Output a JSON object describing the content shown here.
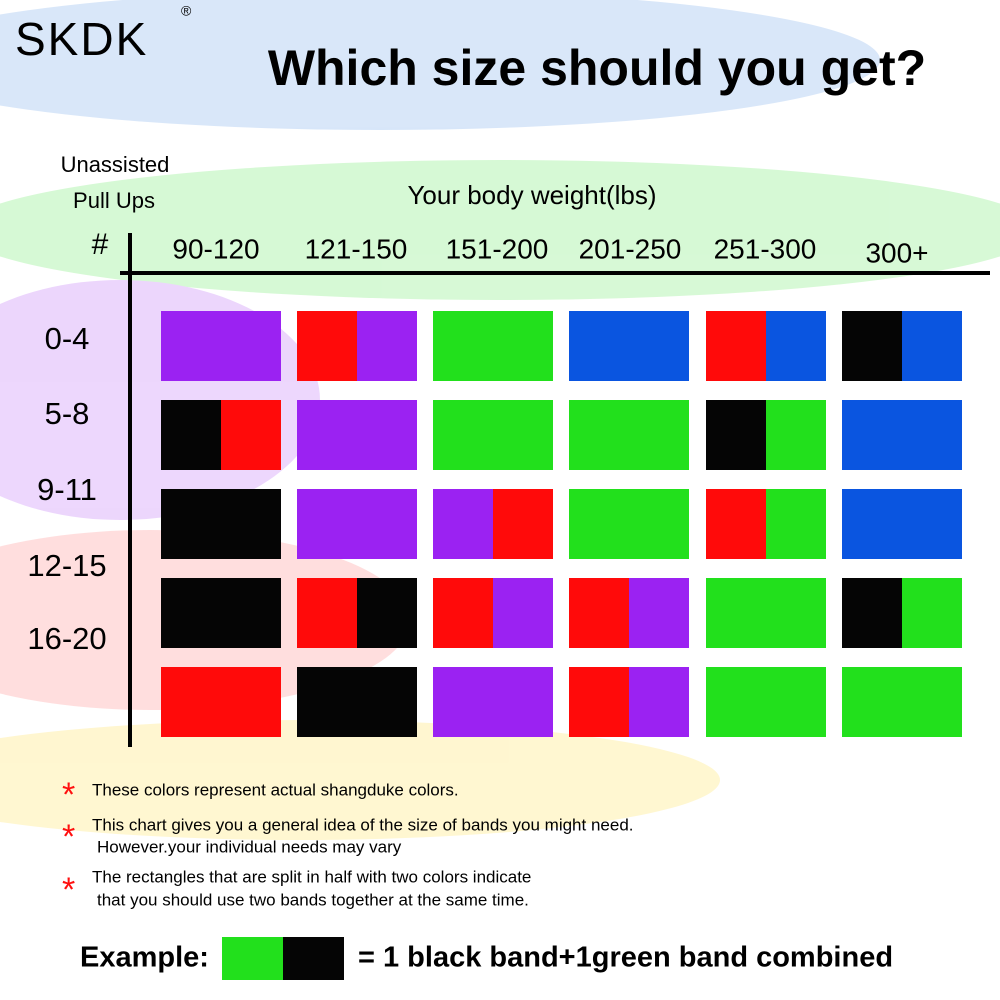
{
  "header": {
    "logo": "SKDK",
    "logo_mark": "®",
    "title": "Which size should you get?"
  },
  "table": {
    "row_axis_label": [
      "Unassisted",
      "Pull Ups"
    ],
    "row_axis_symbol": "#",
    "column_axis_label": "Your body weight(lbs)",
    "columns": [
      "90-120",
      "121-150",
      "151-200",
      "201-250",
      "251-300",
      "300+"
    ],
    "rows": [
      "0-4",
      "5-8",
      "9-11",
      "12-15",
      "16-20"
    ],
    "palette": {
      "purple": "#9b22f2",
      "red": "#ff0a0a",
      "green": "#22e01c",
      "blue": "#0a55e0",
      "black": "#050505"
    },
    "cells": [
      [
        [
          "purple"
        ],
        [
          "red",
          "purple"
        ],
        [
          "green"
        ],
        [
          "blue"
        ],
        [
          "red",
          "blue"
        ],
        [
          "black",
          "blue"
        ]
      ],
      [
        [
          "black",
          "red"
        ],
        [
          "purple"
        ],
        [
          "green"
        ],
        [
          "green"
        ],
        [
          "black",
          "green"
        ],
        [
          "blue"
        ]
      ],
      [
        [
          "black"
        ],
        [
          "purple"
        ],
        [
          "purple",
          "red"
        ],
        [
          "green"
        ],
        [
          "red",
          "green"
        ],
        [
          "blue"
        ]
      ],
      [
        [
          "black"
        ],
        [
          "red",
          "black"
        ],
        [
          "red",
          "purple"
        ],
        [
          "red",
          "purple"
        ],
        [
          "green"
        ],
        [
          "black",
          "green"
        ]
      ],
      [
        [
          "red"
        ],
        [
          "black"
        ],
        [
          "purple"
        ],
        [
          "red",
          "purple"
        ],
        [
          "green"
        ],
        [
          "green"
        ]
      ]
    ]
  },
  "notes": {
    "marker": "*",
    "items": [
      [
        "These colors represent actual shangduke colors."
      ],
      [
        "This chart gives you a general idea of the size of bands you might need.",
        "However.your individual needs may vary"
      ],
      [
        "The rectangles that are split in half with two colors indicate",
        "that you should use two bands together at the same time."
      ]
    ]
  },
  "example": {
    "label": "Example:",
    "swatch": [
      "green",
      "black"
    ],
    "text": "= 1 black band+1green band combined"
  }
}
